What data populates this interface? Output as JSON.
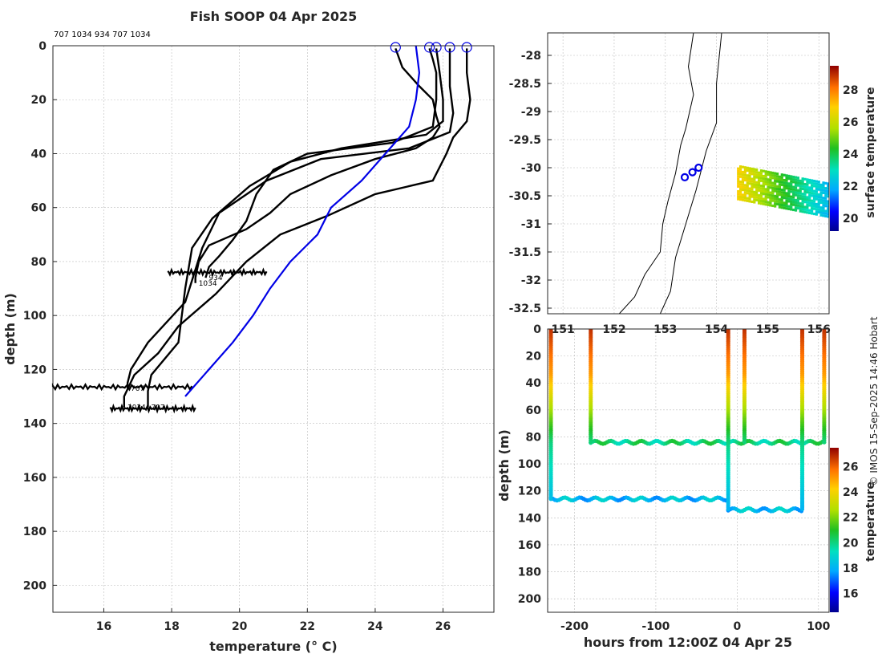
{
  "title": "Fish SOOP 04 Apr 2025",
  "float_ids_label": "707 1034 934 707 1034",
  "credit": "© IMOS 15-Sep-2025 14:46 Hobart",
  "chart_data": [
    {
      "id": "profiles",
      "type": "line",
      "xlabel": "temperature (° C)",
      "ylabel": "depth (m)",
      "xlim": [
        14.5,
        27.5
      ],
      "ylim": [
        210,
        0
      ],
      "xticks": [
        16,
        18,
        20,
        22,
        24,
        26
      ],
      "yticks": [
        0,
        20,
        40,
        60,
        80,
        100,
        120,
        140,
        160,
        180,
        200
      ],
      "climatology": {
        "name": "climatology",
        "color": "#0000e6",
        "x": [
          25.2,
          25.3,
          25.2,
          25.0,
          24.3,
          23.6,
          22.7,
          22.3,
          21.5,
          20.9,
          20.4,
          19.8,
          19.1,
          18.4
        ],
        "y": [
          0,
          10,
          20,
          30,
          40,
          50,
          60,
          70,
          80,
          90,
          100,
          110,
          120,
          130
        ]
      },
      "profiles": [
        {
          "x": [
            24.6,
            24.8,
            25.3,
            25.7,
            25.8,
            25.9,
            25.7,
            25.2,
            24.0,
            22.7,
            21.5,
            20.9,
            20.2,
            19.1,
            18.8,
            18.7,
            18.7
          ],
          "y": [
            1,
            8,
            15,
            20,
            26,
            30,
            34,
            38,
            42,
            48,
            55,
            62,
            68,
            74,
            80,
            86,
            88
          ],
          "label": "1034"
        },
        {
          "x": [
            25.6,
            25.7,
            25.8,
            25.8,
            25.7,
            24.5,
            22.0,
            21.0,
            20.5,
            20.2,
            19.8,
            19.4,
            19.1,
            19.0
          ],
          "y": [
            1,
            5,
            10,
            20,
            30,
            36,
            40,
            46,
            55,
            65,
            72,
            78,
            82,
            86
          ],
          "label": "934"
        },
        {
          "x": [
            25.8,
            25.9,
            26.0,
            26.0,
            25.5,
            23.0,
            21.5,
            20.3,
            19.2,
            18.6,
            18.4,
            18.2,
            17.4,
            17.3,
            17.3
          ],
          "y": [
            1,
            10,
            20,
            28,
            33,
            38,
            43,
            52,
            64,
            75,
            90,
            110,
            122,
            128,
            134
          ],
          "label": "707"
        },
        {
          "x": [
            26.2,
            26.2,
            26.3,
            26.2,
            25.0,
            22.4,
            20.8,
            19.4,
            18.9,
            18.4,
            17.3,
            16.8,
            16.7,
            16.7
          ],
          "y": [
            1,
            15,
            25,
            32,
            38,
            42,
            50,
            62,
            75,
            95,
            110,
            120,
            125,
            127
          ],
          "label": "707"
        },
        {
          "x": [
            26.7,
            26.7,
            26.8,
            26.7,
            26.3,
            26.1,
            25.7,
            24.0,
            22.6,
            21.2,
            20.2,
            19.3,
            18.2,
            17.6,
            16.9,
            16.6,
            16.6
          ],
          "y": [
            1,
            10,
            20,
            28,
            34,
            40,
            50,
            55,
            63,
            70,
            80,
            92,
            104,
            114,
            122,
            130,
            134
          ],
          "label": "1034"
        }
      ]
    },
    {
      "id": "map",
      "type": "scatter",
      "colorbar_label": "surface temperature",
      "xlim": [
        150.7,
        156.2
      ],
      "ylim": [
        -32.6,
        -27.6
      ],
      "xticks": [
        151,
        152,
        153,
        154,
        155,
        156
      ],
      "yticks": [
        -28,
        -28.5,
        -29,
        -29.5,
        -30,
        -30.5,
        -31,
        -31.5,
        -32,
        -32.5
      ],
      "colorbar_ticks": [
        20,
        22,
        24,
        26,
        28
      ],
      "colorbar_range": [
        19.2,
        29.5
      ],
      "float_positions": [
        {
          "lon": 153.38,
          "lat": -30.17
        },
        {
          "lon": 153.53,
          "lat": -30.08
        },
        {
          "lon": 153.65,
          "lat": -30.0
        }
      ]
    },
    {
      "id": "timeseries",
      "type": "scatter",
      "xlabel": "hours from 12:00Z 04 Apr 25",
      "ylabel": "depth (m)",
      "colorbar_label": "temperature",
      "xlim": [
        -233,
        113
      ],
      "ylim": [
        210,
        0
      ],
      "xticks": [
        -200,
        -100,
        0,
        100
      ],
      "yticks": [
        0,
        20,
        40,
        60,
        80,
        100,
        120,
        140,
        160,
        180,
        200
      ],
      "colorbar_ticks": [
        16,
        18,
        20,
        22,
        24,
        26
      ],
      "colorbar_range": [
        14.5,
        27.5
      ],
      "vertical_profiles": [
        {
          "hour": -229,
          "bottom": 126
        },
        {
          "hour": -180,
          "bottom": 85
        },
        {
          "hour": -11,
          "bottom": 134
        },
        {
          "hour": 9,
          "bottom": 84
        },
        {
          "hour": 80,
          "bottom": 134
        },
        {
          "hour": 107,
          "bottom": 84
        }
      ],
      "horizontal_tracks": [
        {
          "from": -229,
          "to": -11,
          "depth": 126,
          "temp": 18.2
        },
        {
          "from": -180,
          "to": 107,
          "depth": 84,
          "temp": 20.0
        },
        {
          "from": -11,
          "to": 80,
          "depth": 134,
          "temp": 18.3
        }
      ]
    }
  ]
}
